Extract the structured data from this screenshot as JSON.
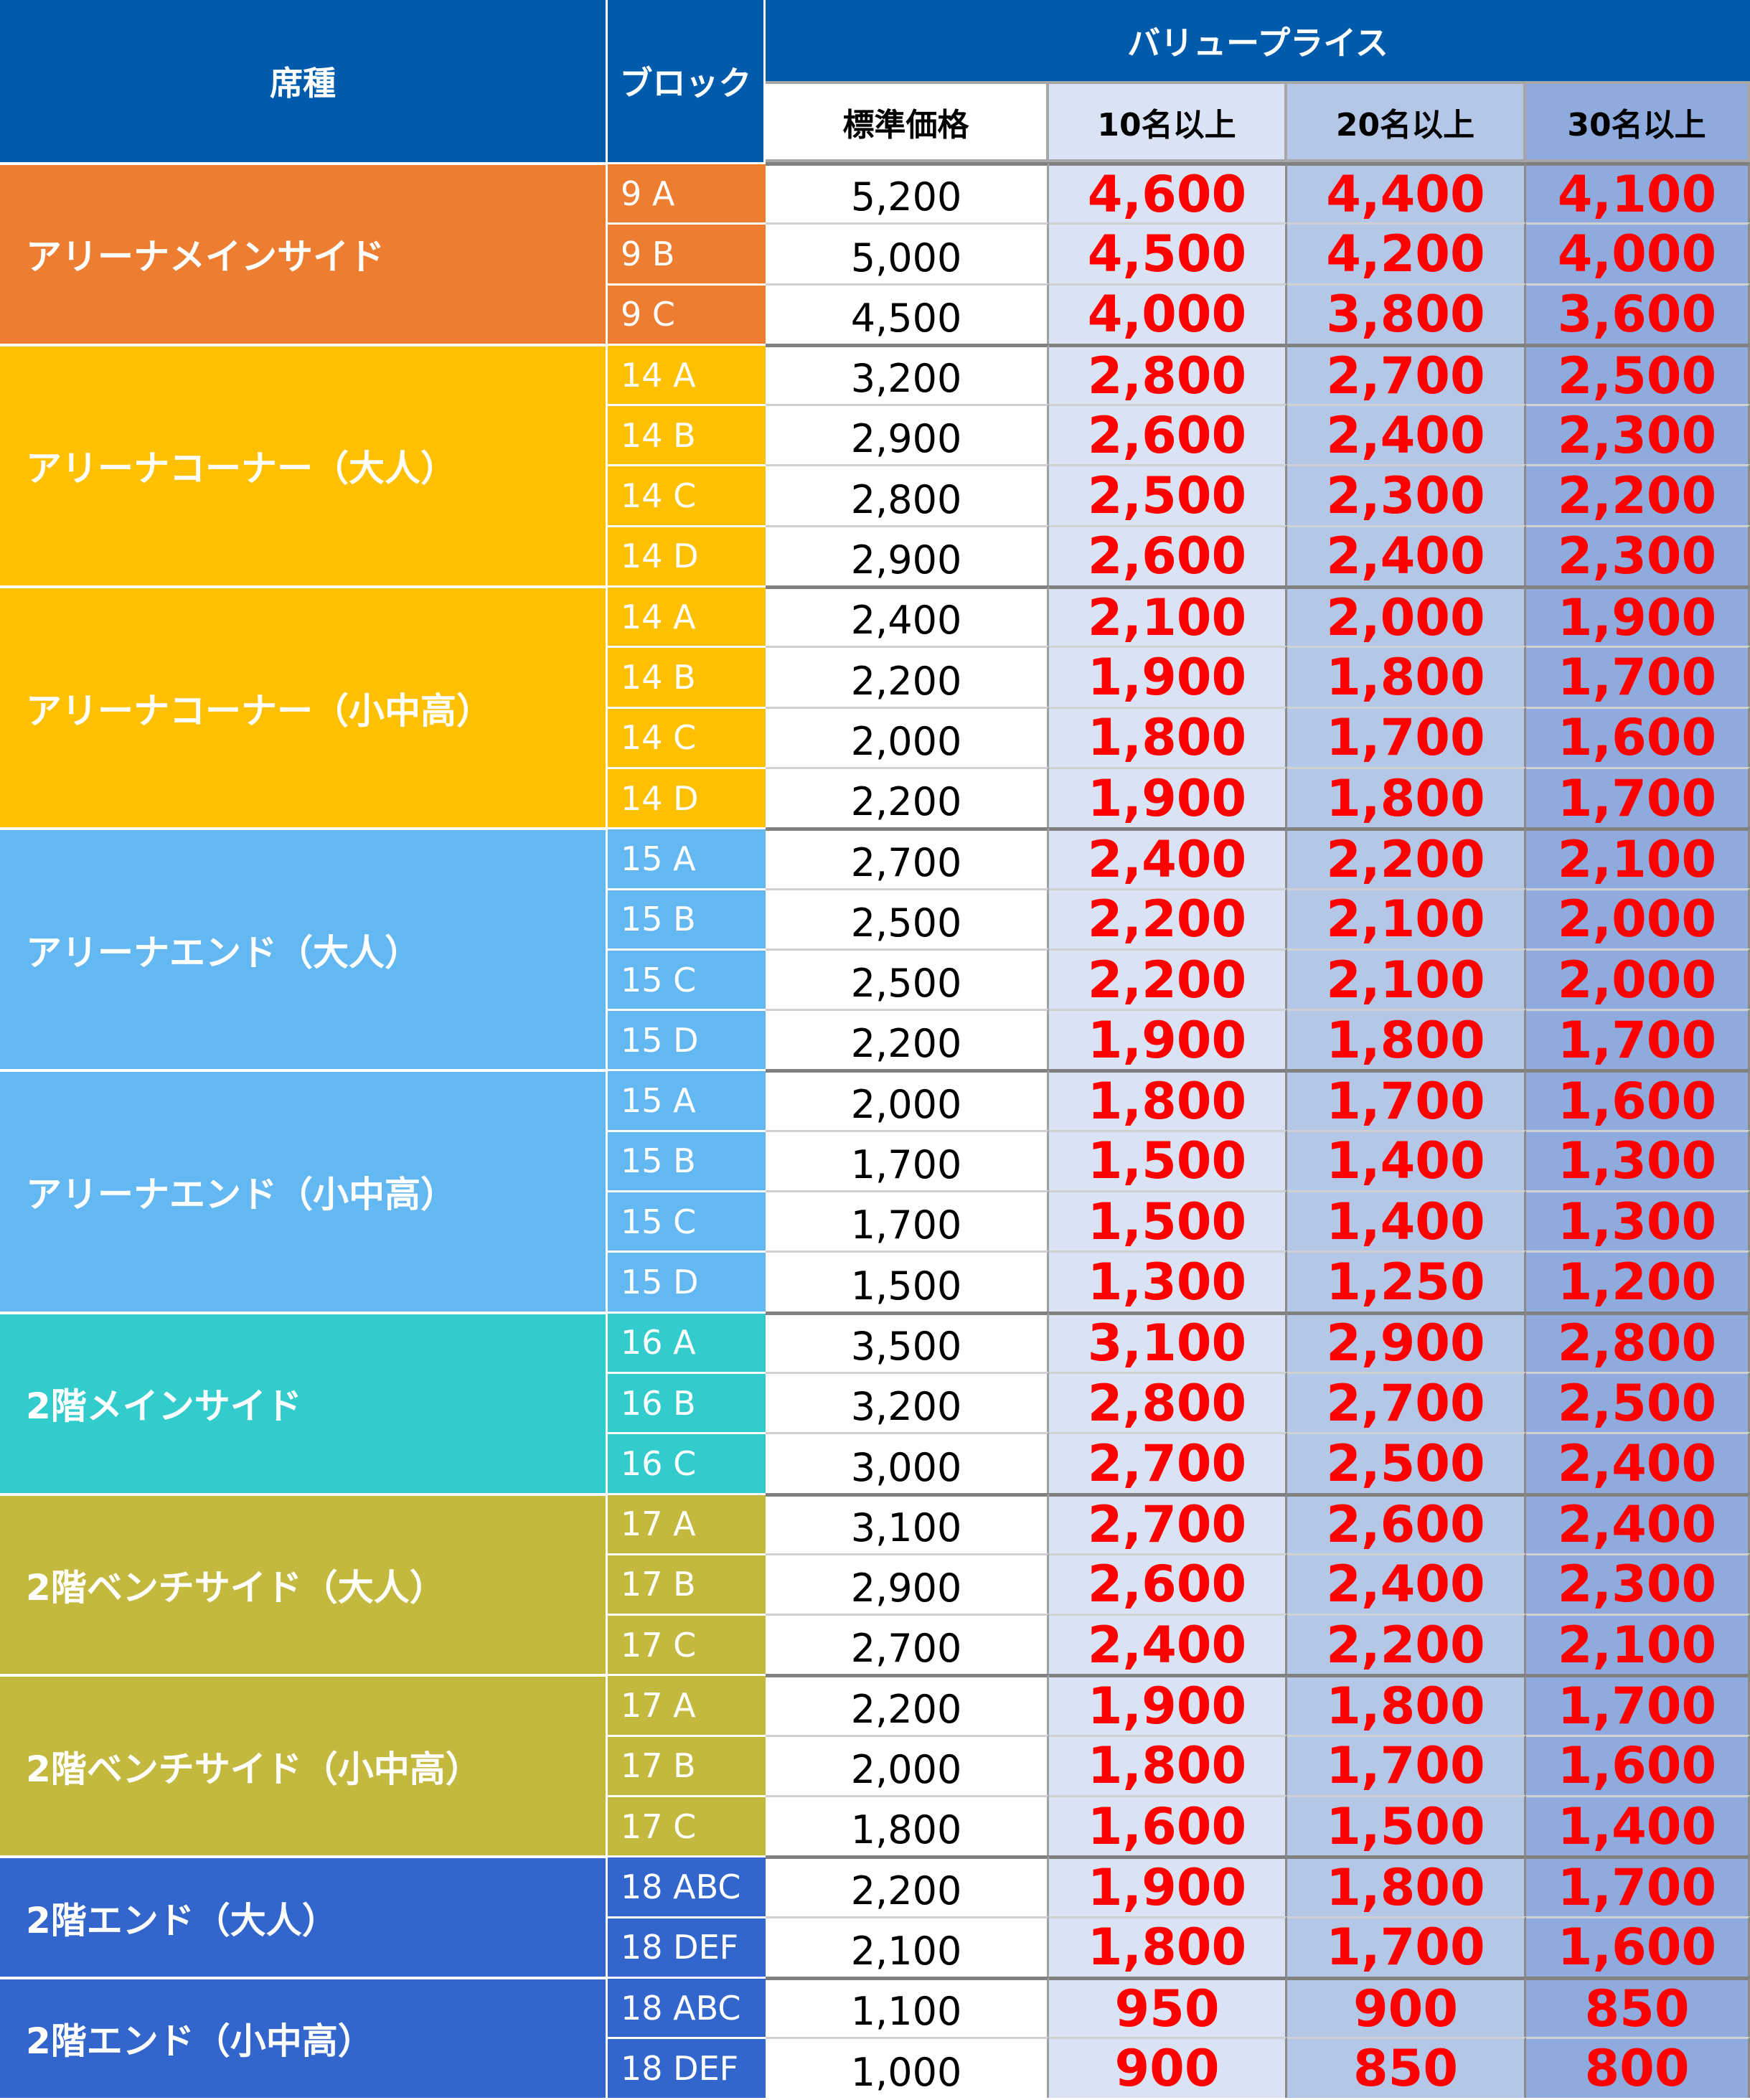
{
  "header": {
    "seat_type": "席種",
    "block": "ブロック",
    "value_price": "バリュープライス",
    "standard_price": "標準価格",
    "tier_10": "10名以上",
    "tier_20": "20名以上",
    "tier_30": "30名以上"
  },
  "colors": {
    "header": "#005BAC",
    "value_price_text": "#FF0000",
    "tier_10_bg": "#DAE3F3",
    "tier_20_bg": "#B4C7E7",
    "tier_30_bg": "#8FAADC"
  },
  "groups": [
    {
      "name": "アリーナメインサイド",
      "color": "#ED7D31",
      "rows": [
        {
          "block": "9 A",
          "standard": "5,200",
          "p10": "4,600",
          "p20": "4,400",
          "p30": "4,100"
        },
        {
          "block": "9 B",
          "standard": "5,000",
          "p10": "4,500",
          "p20": "4,200",
          "p30": "4,000"
        },
        {
          "block": "9 C",
          "standard": "4,500",
          "p10": "4,000",
          "p20": "3,800",
          "p30": "3,600"
        }
      ]
    },
    {
      "name": "アリーナコーナー（大人）",
      "color": "#FFC000",
      "rows": [
        {
          "block": "14 A",
          "standard": "3,200",
          "p10": "2,800",
          "p20": "2,700",
          "p30": "2,500"
        },
        {
          "block": "14 B",
          "standard": "2,900",
          "p10": "2,600",
          "p20": "2,400",
          "p30": "2,300"
        },
        {
          "block": "14 C",
          "standard": "2,800",
          "p10": "2,500",
          "p20": "2,300",
          "p30": "2,200"
        },
        {
          "block": "14 D",
          "standard": "2,900",
          "p10": "2,600",
          "p20": "2,400",
          "p30": "2,300"
        }
      ]
    },
    {
      "name": "アリーナコーナー（小中高）",
      "color": "#FFC000",
      "rows": [
        {
          "block": "14 A",
          "standard": "2,400",
          "p10": "2,100",
          "p20": "2,000",
          "p30": "1,900"
        },
        {
          "block": "14 B",
          "standard": "2,200",
          "p10": "1,900",
          "p20": "1,800",
          "p30": "1,700"
        },
        {
          "block": "14 C",
          "standard": "2,000",
          "p10": "1,800",
          "p20": "1,700",
          "p30": "1,600"
        },
        {
          "block": "14 D",
          "standard": "2,200",
          "p10": "1,900",
          "p20": "1,800",
          "p30": "1,700"
        }
      ]
    },
    {
      "name": "アリーナエンド（大人）",
      "color": "#63B8F2",
      "rows": [
        {
          "block": "15 A",
          "standard": "2,700",
          "p10": "2,400",
          "p20": "2,200",
          "p30": "2,100"
        },
        {
          "block": "15 B",
          "standard": "2,500",
          "p10": "2,200",
          "p20": "2,100",
          "p30": "2,000"
        },
        {
          "block": "15 C",
          "standard": "2,500",
          "p10": "2,200",
          "p20": "2,100",
          "p30": "2,000"
        },
        {
          "block": "15 D",
          "standard": "2,200",
          "p10": "1,900",
          "p20": "1,800",
          "p30": "1,700"
        }
      ]
    },
    {
      "name": "アリーナエンド（小中高）",
      "color": "#63B8F2",
      "rows": [
        {
          "block": "15 A",
          "standard": "2,000",
          "p10": "1,800",
          "p20": "1,700",
          "p30": "1,600"
        },
        {
          "block": "15 B",
          "standard": "1,700",
          "p10": "1,500",
          "p20": "1,400",
          "p30": "1,300"
        },
        {
          "block": "15 C",
          "standard": "1,700",
          "p10": "1,500",
          "p20": "1,400",
          "p30": "1,300"
        },
        {
          "block": "15 D",
          "standard": "1,500",
          "p10": "1,300",
          "p20": "1,250",
          "p30": "1,200"
        }
      ]
    },
    {
      "name": "2階メインサイド",
      "color": "#33CCCC",
      "rows": [
        {
          "block": "16 A",
          "standard": "3,500",
          "p10": "3,100",
          "p20": "2,900",
          "p30": "2,800"
        },
        {
          "block": "16 B",
          "standard": "3,200",
          "p10": "2,800",
          "p20": "2,700",
          "p30": "2,500"
        },
        {
          "block": "16 C",
          "standard": "3,000",
          "p10": "2,700",
          "p20": "2,500",
          "p30": "2,400"
        }
      ]
    },
    {
      "name": "2階ベンチサイド（大人）",
      "color": "#C4B93F",
      "rows": [
        {
          "block": "17 A",
          "standard": "3,100",
          "p10": "2,700",
          "p20": "2,600",
          "p30": "2,400"
        },
        {
          "block": "17 B",
          "standard": "2,900",
          "p10": "2,600",
          "p20": "2,400",
          "p30": "2,300"
        },
        {
          "block": "17 C",
          "standard": "2,700",
          "p10": "2,400",
          "p20": "2,200",
          "p30": "2,100"
        }
      ]
    },
    {
      "name": "2階ベンチサイド（小中高）",
      "color": "#C4B93F",
      "rows": [
        {
          "block": "17 A",
          "standard": "2,200",
          "p10": "1,900",
          "p20": "1,800",
          "p30": "1,700"
        },
        {
          "block": "17 B",
          "standard": "2,000",
          "p10": "1,800",
          "p20": "1,700",
          "p30": "1,600"
        },
        {
          "block": "17 C",
          "standard": "1,800",
          "p10": "1,600",
          "p20": "1,500",
          "p30": "1,400"
        }
      ]
    },
    {
      "name": "2階エンド（大人）",
      "color": "#3366CC",
      "rows": [
        {
          "block": "18 ABC",
          "standard": "2,200",
          "p10": "1,900",
          "p20": "1,800",
          "p30": "1,700"
        },
        {
          "block": "18 DEF",
          "standard": "2,100",
          "p10": "1,800",
          "p20": "1,700",
          "p30": "1,600"
        }
      ]
    },
    {
      "name": "2階エンド（小中高）",
      "color": "#3366CC",
      "rows": [
        {
          "block": "18 ABC",
          "standard": "1,100",
          "p10": "950",
          "p20": "900",
          "p30": "850"
        },
        {
          "block": "18 DEF",
          "standard": "1,000",
          "p10": "900",
          "p20": "850",
          "p30": "800"
        }
      ]
    }
  ]
}
